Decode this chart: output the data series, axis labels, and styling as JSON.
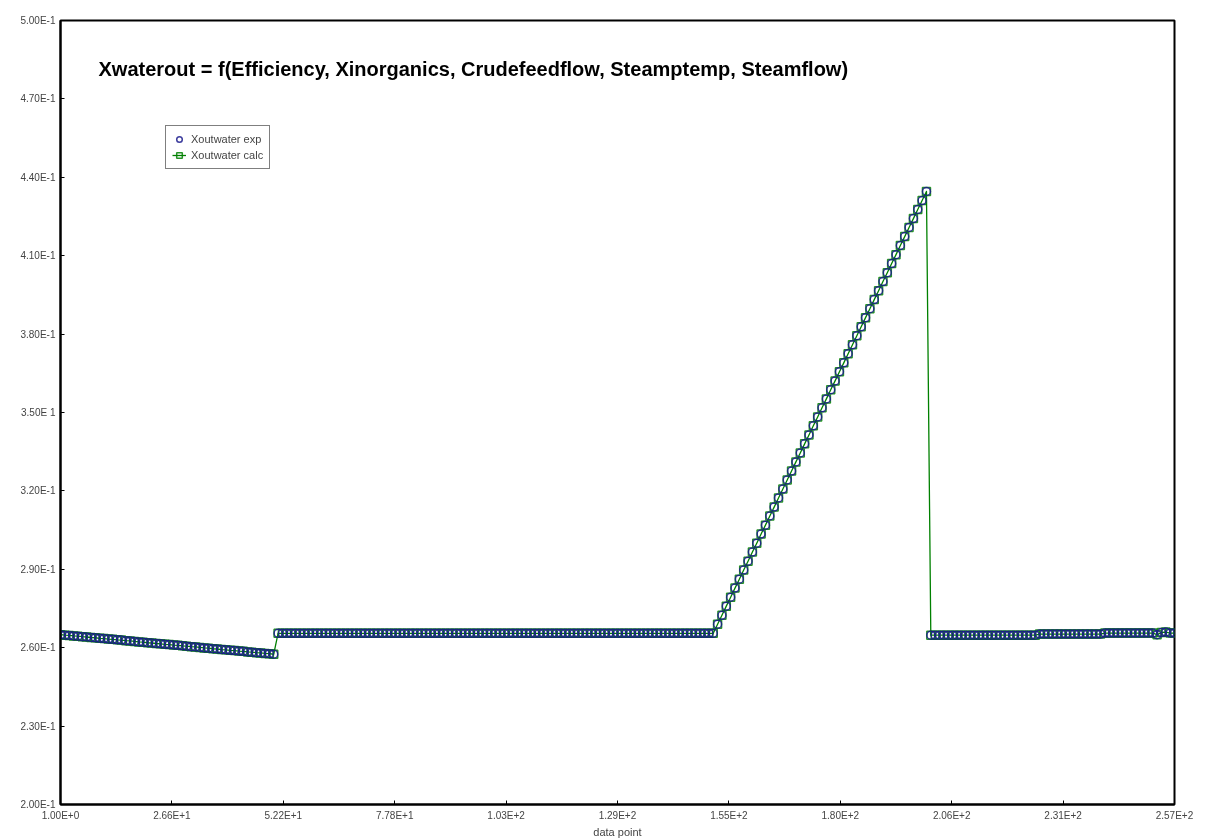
{
  "chart_data": {
    "type": "scatter",
    "title": "Xwaterout = f(Efficiency, Xinorganics, Crudefeedflow, Steamptemp, Steamflow)",
    "xlabel": "data point",
    "xlim": [
      1,
      257
    ],
    "ylim": [
      0.2,
      0.5
    ],
    "xticks": [
      {
        "value": 1,
        "label": "1.00E+0"
      },
      {
        "value": 26.6,
        "label": "2.66E+1"
      },
      {
        "value": 52.2,
        "label": "5.22E+1"
      },
      {
        "value": 77.8,
        "label": "7.78E+1"
      },
      {
        "value": 103.4,
        "label": "1.03E+2"
      },
      {
        "value": 129,
        "label": "1.29E+2"
      },
      {
        "value": 154.6,
        "label": "1.55E+2"
      },
      {
        "value": 180.2,
        "label": "1.80E+2"
      },
      {
        "value": 205.8,
        "label": "2.06E+2"
      },
      {
        "value": 231.4,
        "label": "2.31E+2"
      },
      {
        "value": 257,
        "label": "2.57E+2"
      }
    ],
    "yticks": [
      {
        "value": 0.2,
        "label": "2.00E-1"
      },
      {
        "value": 0.23,
        "label": "2.30E-1"
      },
      {
        "value": 0.26,
        "label": "2.60E-1"
      },
      {
        "value": 0.29,
        "label": "2.90E-1"
      },
      {
        "value": 0.32,
        "label": "3.20E-1"
      },
      {
        "value": 0.35,
        "label": "3.50E 1"
      },
      {
        "value": 0.38,
        "label": "3.80E-1"
      },
      {
        "value": 0.41,
        "label": "4.10E-1"
      },
      {
        "value": 0.44,
        "label": "4.40E-1"
      },
      {
        "value": 0.47,
        "label": "4.70E-1"
      },
      {
        "value": 0.5,
        "label": "5.00E-1"
      }
    ],
    "grid": false,
    "legend": "top left",
    "x": [
      1,
      2,
      3,
      4,
      5,
      6,
      7,
      8,
      9,
      10,
      11,
      12,
      13,
      14,
      15,
      16,
      17,
      18,
      19,
      20,
      21,
      22,
      23,
      24,
      25,
      26,
      27,
      28,
      29,
      30,
      31,
      32,
      33,
      34,
      35,
      36,
      37,
      38,
      39,
      40,
      41,
      42,
      43,
      44,
      45,
      46,
      47,
      48,
      49,
      50,
      51,
      52,
      53,
      54,
      55,
      56,
      57,
      58,
      59,
      60,
      61,
      62,
      63,
      64,
      65,
      66,
      67,
      68,
      69,
      70,
      71,
      72,
      73,
      74,
      75,
      76,
      77,
      78,
      79,
      80,
      81,
      82,
      83,
      84,
      85,
      86,
      87,
      88,
      89,
      90,
      91,
      92,
      93,
      94,
      95,
      96,
      97,
      98,
      99,
      100,
      101,
      102,
      103,
      104,
      105,
      106,
      107,
      108,
      109,
      110,
      111,
      112,
      113,
      114,
      115,
      116,
      117,
      118,
      119,
      120,
      121,
      122,
      123,
      124,
      125,
      126,
      127,
      128,
      129,
      130,
      131,
      132,
      133,
      134,
      135,
      136,
      137,
      138,
      139,
      140,
      141,
      142,
      143,
      144,
      145,
      146,
      147,
      148,
      149,
      150,
      151,
      152,
      153,
      154,
      155,
      156,
      157,
      158,
      159,
      160,
      161,
      162,
      163,
      164,
      165,
      166,
      167,
      168,
      169,
      170,
      171,
      172,
      173,
      174,
      175,
      176,
      177,
      178,
      179,
      180,
      181,
      182,
      183,
      184,
      185,
      186,
      187,
      188,
      189,
      190,
      191,
      192,
      193,
      194,
      195,
      196,
      197,
      198,
      199,
      200,
      201,
      202,
      203,
      204,
      205,
      206,
      207,
      208,
      209,
      210,
      211,
      212,
      213,
      214,
      215,
      216,
      217,
      218,
      219,
      220,
      221,
      222,
      223,
      224,
      225,
      226,
      227,
      228,
      229,
      230,
      231,
      232,
      233,
      234,
      235,
      236,
      237,
      238,
      239,
      240,
      241,
      242,
      243,
      244,
      245,
      246,
      247,
      248,
      249,
      250,
      251,
      252,
      253,
      254,
      255,
      256,
      257
    ],
    "series": [
      {
        "name": "Xoutwater exp",
        "marker": "circle",
        "color": "#1a1a8c",
        "values": [
          0.265,
          0.2648,
          0.2647,
          0.2645,
          0.2644,
          0.2642,
          0.2641,
          0.2639,
          0.2638,
          0.2636,
          0.2635,
          0.2633,
          0.2632,
          0.263,
          0.2629,
          0.2627,
          0.2626,
          0.2624,
          0.2622,
          0.2621,
          0.2619,
          0.2618,
          0.2616,
          0.2615,
          0.2613,
          0.2612,
          0.261,
          0.2609,
          0.2607,
          0.2606,
          0.2604,
          0.2603,
          0.2601,
          0.2599,
          0.2598,
          0.2596,
          0.2595,
          0.2593,
          0.2592,
          0.259,
          0.2589,
          0.2587,
          0.2586,
          0.2584,
          0.2583,
          0.2581,
          0.258,
          0.2578,
          0.2577,
          0.2575,
          0.2655,
          0.2655,
          0.2655,
          0.2655,
          0.2655,
          0.2655,
          0.2655,
          0.2655,
          0.2655,
          0.2655,
          0.2655,
          0.2655,
          0.2655,
          0.2655,
          0.2655,
          0.2655,
          0.2655,
          0.2655,
          0.2655,
          0.2655,
          0.2655,
          0.2655,
          0.2655,
          0.2655,
          0.2655,
          0.2655,
          0.2655,
          0.2655,
          0.2655,
          0.2655,
          0.2655,
          0.2655,
          0.2655,
          0.2655,
          0.2655,
          0.2655,
          0.2655,
          0.2655,
          0.2655,
          0.2655,
          0.2655,
          0.2655,
          0.2655,
          0.2655,
          0.2655,
          0.2655,
          0.2655,
          0.2655,
          0.2655,
          0.2655,
          0.2655,
          0.2655,
          0.2655,
          0.2655,
          0.2655,
          0.2655,
          0.2655,
          0.2655,
          0.2655,
          0.2655,
          0.2655,
          0.2655,
          0.2655,
          0.2655,
          0.2655,
          0.2655,
          0.2655,
          0.2655,
          0.2655,
          0.2655,
          0.2655,
          0.2655,
          0.2655,
          0.2655,
          0.2655,
          0.2655,
          0.2655,
          0.2655,
          0.2655,
          0.2655,
          0.2655,
          0.2655,
          0.2655,
          0.2655,
          0.2655,
          0.2655,
          0.2655,
          0.2655,
          0.2655,
          0.2655,
          0.2655,
          0.2655,
          0.2655,
          0.2655,
          0.2655,
          0.2655,
          0.2655,
          0.2655,
          0.2655,
          0.2655,
          0.2655,
          0.269,
          0.2724,
          0.2759,
          0.2793,
          0.2828,
          0.2862,
          0.2897,
          0.2931,
          0.2966,
          0.3,
          0.3035,
          0.3069,
          0.3104,
          0.3138,
          0.3173,
          0.3207,
          0.3242,
          0.3276,
          0.3311,
          0.3345,
          0.338,
          0.3414,
          0.3449,
          0.3483,
          0.3518,
          0.3552,
          0.3587,
          0.3621,
          0.3656,
          0.369,
          0.3725,
          0.3759,
          0.3794,
          0.3828,
          0.3863,
          0.3897,
          0.3932,
          0.3966,
          0.4001,
          0.4035,
          0.407,
          0.4104,
          0.4139,
          0.4173,
          0.4208,
          0.4242,
          0.4277,
          0.4311,
          0.4346,
          0.2648,
          0.2648,
          0.2648,
          0.2648,
          0.2648,
          0.2648,
          0.2648,
          0.2648,
          0.2648,
          0.2648,
          0.2648,
          0.2648,
          0.2648,
          0.2648,
          0.2648,
          0.2648,
          0.2648,
          0.2648,
          0.2648,
          0.2648,
          0.2648,
          0.2648,
          0.2648,
          0.2648,
          0.2648,
          0.2652,
          0.2652,
          0.2652,
          0.2652,
          0.2652,
          0.2652,
          0.2652,
          0.2652,
          0.2652,
          0.2652,
          0.2652,
          0.2652,
          0.2652,
          0.2652,
          0.2652,
          0.2656,
          0.2656,
          0.2656,
          0.2656,
          0.2656,
          0.2656,
          0.2656,
          0.2656,
          0.2656,
          0.2656,
          0.2656,
          0.2656,
          0.265,
          0.2658,
          0.266,
          0.2656,
          0.2656
        ]
      },
      {
        "name": "Xoutwater calc",
        "type": "line",
        "marker": "square",
        "color": "#008000",
        "values": [
          0.265,
          0.2648,
          0.2647,
          0.2645,
          0.2644,
          0.2642,
          0.2641,
          0.2639,
          0.2638,
          0.2636,
          0.2635,
          0.2633,
          0.2632,
          0.263,
          0.2629,
          0.2627,
          0.2626,
          0.2624,
          0.2622,
          0.2621,
          0.2619,
          0.2618,
          0.2616,
          0.2615,
          0.2613,
          0.2612,
          0.261,
          0.2609,
          0.2607,
          0.2606,
          0.2604,
          0.2603,
          0.2601,
          0.2599,
          0.2598,
          0.2596,
          0.2595,
          0.2593,
          0.2592,
          0.259,
          0.2589,
          0.2587,
          0.2586,
          0.2584,
          0.2583,
          0.2581,
          0.258,
          0.2578,
          0.2577,
          0.2575,
          0.2655,
          0.2655,
          0.2655,
          0.2655,
          0.2655,
          0.2655,
          0.2655,
          0.2655,
          0.2655,
          0.2655,
          0.2655,
          0.2655,
          0.2655,
          0.2655,
          0.2655,
          0.2655,
          0.2655,
          0.2655,
          0.2655,
          0.2655,
          0.2655,
          0.2655,
          0.2655,
          0.2655,
          0.2655,
          0.2655,
          0.2655,
          0.2655,
          0.2655,
          0.2655,
          0.2655,
          0.2655,
          0.2655,
          0.2655,
          0.2655,
          0.2655,
          0.2655,
          0.2655,
          0.2655,
          0.2655,
          0.2655,
          0.2655,
          0.2655,
          0.2655,
          0.2655,
          0.2655,
          0.2655,
          0.2655,
          0.2655,
          0.2655,
          0.2655,
          0.2655,
          0.2655,
          0.2655,
          0.2655,
          0.2655,
          0.2655,
          0.2655,
          0.2655,
          0.2655,
          0.2655,
          0.2655,
          0.2655,
          0.2655,
          0.2655,
          0.2655,
          0.2655,
          0.2655,
          0.2655,
          0.2655,
          0.2655,
          0.2655,
          0.2655,
          0.2655,
          0.2655,
          0.2655,
          0.2655,
          0.2655,
          0.2655,
          0.2655,
          0.2655,
          0.2655,
          0.2655,
          0.2655,
          0.2655,
          0.2655,
          0.2655,
          0.2655,
          0.2655,
          0.2655,
          0.2655,
          0.2655,
          0.2655,
          0.2655,
          0.2655,
          0.2655,
          0.2655,
          0.2655,
          0.2655,
          0.2655,
          0.2655,
          0.269,
          0.2724,
          0.2759,
          0.2793,
          0.2828,
          0.2862,
          0.2897,
          0.2931,
          0.2966,
          0.3,
          0.3035,
          0.3069,
          0.3104,
          0.3138,
          0.3173,
          0.3207,
          0.3242,
          0.3276,
          0.3311,
          0.3345,
          0.338,
          0.3414,
          0.3449,
          0.3483,
          0.3518,
          0.3552,
          0.3587,
          0.3621,
          0.3656,
          0.369,
          0.3725,
          0.3759,
          0.3794,
          0.3828,
          0.3863,
          0.3897,
          0.3932,
          0.3966,
          0.4001,
          0.4035,
          0.407,
          0.4104,
          0.4139,
          0.4173,
          0.4208,
          0.4242,
          0.4277,
          0.4311,
          0.4346,
          0.2648,
          0.2648,
          0.2648,
          0.2648,
          0.2648,
          0.2648,
          0.2648,
          0.2648,
          0.2648,
          0.2648,
          0.2648,
          0.2648,
          0.2648,
          0.2648,
          0.2648,
          0.2648,
          0.2648,
          0.2648,
          0.2648,
          0.2648,
          0.2648,
          0.2648,
          0.2648,
          0.2648,
          0.2648,
          0.2652,
          0.2652,
          0.2652,
          0.2652,
          0.2652,
          0.2652,
          0.2652,
          0.2652,
          0.2652,
          0.2652,
          0.2652,
          0.2652,
          0.2652,
          0.2652,
          0.2652,
          0.2656,
          0.2656,
          0.2656,
          0.2656,
          0.2656,
          0.2656,
          0.2656,
          0.2656,
          0.2656,
          0.2656,
          0.2656,
          0.2656,
          0.265,
          0.2658,
          0.266,
          0.2656,
          0.2656
        ]
      }
    ]
  }
}
